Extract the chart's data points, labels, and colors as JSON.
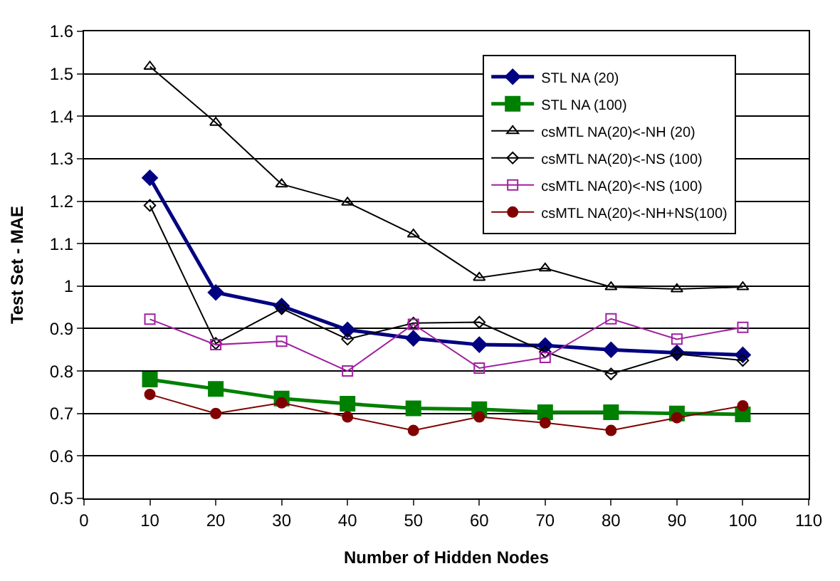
{
  "chart_data": {
    "type": "line",
    "xlabel": "Number of Hidden Nodes",
    "ylabel": "Test Set - MAE",
    "x": [
      10,
      20,
      30,
      40,
      50,
      60,
      70,
      80,
      90,
      100
    ],
    "xlim": [
      0,
      110
    ],
    "xticks": [
      0,
      10,
      20,
      30,
      40,
      50,
      60,
      70,
      80,
      90,
      100,
      110
    ],
    "ylim": [
      0.5,
      1.6
    ],
    "yticks": [
      0.5,
      0.6,
      0.7,
      0.8,
      0.9,
      1,
      1.1,
      1.2,
      1.3,
      1.4,
      1.5,
      1.6
    ],
    "grid": "y",
    "legend": "top right",
    "series": [
      {
        "name": "STL NA (20)",
        "color": "#000080",
        "marker": "diamond",
        "values": [
          1.255,
          0.985,
          0.953,
          0.897,
          0.877,
          0.862,
          0.86,
          0.85,
          0.843,
          0.838
        ]
      },
      {
        "name": "STL NA (100)",
        "color": "#008000",
        "marker": "square",
        "values": [
          0.78,
          0.758,
          0.735,
          0.723,
          0.712,
          0.71,
          0.703,
          0.703,
          0.7,
          0.698
        ]
      },
      {
        "name": "csMTL NA(20)<-NH (20)",
        "color": "#000000",
        "marker": "triangle",
        "values": [
          1.517,
          1.385,
          1.24,
          1.197,
          1.122,
          1.02,
          1.042,
          0.998,
          0.993,
          0.998
        ]
      },
      {
        "name": "csMTL NA(20)<-NS (100)",
        "color": "#000000",
        "marker": "diamond",
        "values": [
          1.19,
          0.865,
          0.947,
          0.875,
          0.913,
          0.915,
          0.845,
          0.793,
          0.84,
          0.825
        ]
      },
      {
        "name": "csMTL NA(20)<-NS (100)",
        "color": "#a020a0",
        "marker": "square",
        "values": [
          0.922,
          0.862,
          0.87,
          0.8,
          0.91,
          0.807,
          0.832,
          0.923,
          0.875,
          0.903
        ]
      },
      {
        "name": "csMTL NA(20)<-NH+NS(100)",
        "color": "#800000",
        "marker": "circle",
        "values": [
          0.745,
          0.7,
          0.725,
          0.692,
          0.66,
          0.692,
          0.678,
          0.66,
          0.69,
          0.718
        ]
      }
    ]
  }
}
